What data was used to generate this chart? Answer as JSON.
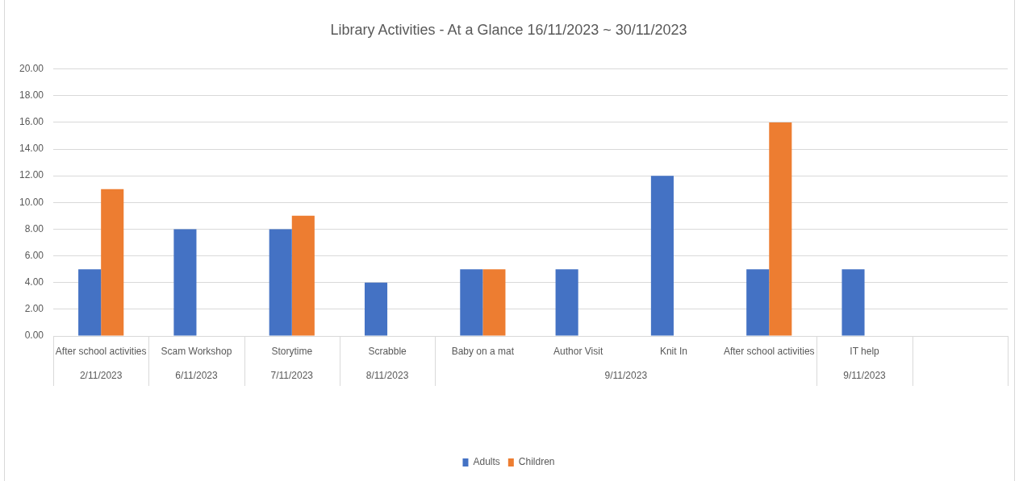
{
  "chart_data": {
    "type": "bar",
    "title": "Library Activities - At a Glance 16/11/2023 ~ 30/11/2023",
    "categories": [
      "After school activities",
      "Scam Workshop",
      "Storytime",
      "Scrabble",
      "Baby on a mat",
      "Author Visit",
      "Knit In",
      "After school activities",
      "IT help",
      null
    ],
    "series": [
      {
        "name": "Adults",
        "color": "#4472c4",
        "values": [
          5,
          8,
          8,
          4,
          5,
          5,
          12,
          5,
          5,
          null
        ]
      },
      {
        "name": "Children",
        "color": "#ed7d31",
        "values": [
          11,
          null,
          9,
          null,
          5,
          null,
          null,
          16,
          null,
          null
        ]
      }
    ],
    "ylim": [
      0,
      20
    ],
    "yticks": [
      {
        "value": 0,
        "label": "0.00"
      },
      {
        "value": 2,
        "label": "2.00"
      },
      {
        "value": 4,
        "label": "4.00"
      },
      {
        "value": 6,
        "label": "6.00"
      },
      {
        "value": 8,
        "label": "8.00"
      },
      {
        "value": 10,
        "label": "10.00"
      },
      {
        "value": 12,
        "label": "12.00"
      },
      {
        "value": 14,
        "label": "14.00"
      },
      {
        "value": 16,
        "label": "16.00"
      },
      {
        "value": 18,
        "label": "18.00"
      },
      {
        "value": 20,
        "label": "20.00"
      }
    ],
    "grid": "y",
    "legend": "bottom",
    "annotations": [
      "2/11/2023",
      "6/11/2023",
      "7/11/2023",
      "8/11/2023",
      "9/11/2023",
      "9/11/2023"
    ]
  }
}
